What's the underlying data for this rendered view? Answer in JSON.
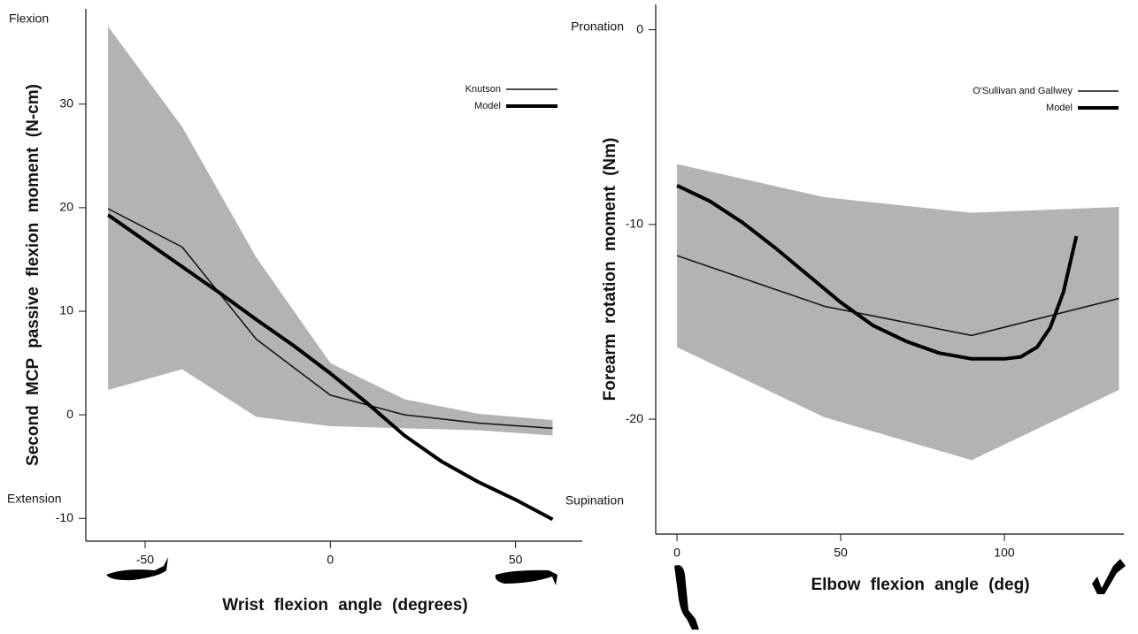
{
  "chart_data": [
    {
      "type": "line",
      "x_label": "Wrist flexion angle (degrees)",
      "y_label": "Second MCP passive flexion moment (N-cm)",
      "annotations": [
        "Flexion",
        "Extension"
      ],
      "xlim": [
        -66,
        68
      ],
      "xticks": [
        -50,
        0,
        50
      ],
      "ylim": [
        -12.2,
        39.2
      ],
      "yticks": [
        -10,
        0,
        10,
        20,
        30
      ],
      "legend": "upper right",
      "band": {
        "color": "#b3b3b3",
        "x": [
          -60,
          -40,
          -20,
          0,
          20,
          40,
          60
        ],
        "upper": [
          37.5,
          27.8,
          15.2,
          5.0,
          1.5,
          0.1,
          -0.5
        ],
        "lower": [
          2.4,
          4.4,
          -0.2,
          -1.1,
          -1.3,
          -1.5,
          -2.0
        ]
      },
      "series": [
        {
          "name": "Knutson",
          "color": "#111111",
          "width": 1.5,
          "x": [
            -60,
            -40,
            -20,
            0,
            20,
            40,
            60
          ],
          "values": [
            19.9,
            16.2,
            7.3,
            1.9,
            0,
            -0.8,
            -1.3
          ]
        },
        {
          "name": "Model",
          "color": "#000000",
          "width": 4,
          "x": [
            -60,
            -50,
            -40,
            -30,
            -20,
            -10,
            0,
            10,
            20,
            30,
            40,
            50,
            60
          ],
          "values": [
            19.3,
            16.8,
            14.3,
            11.8,
            9.2,
            6.7,
            4.0,
            1.1,
            -2.0,
            -4.5,
            -6.5,
            -8.2,
            -10.1
          ]
        }
      ]
    },
    {
      "type": "line",
      "x_label": "Elbow flexion angle (deg)",
      "y_label": "Forearm rotation moment (Nm)",
      "annotations": [
        "Pronation",
        "Supination"
      ],
      "xlim": [
        -6.5,
        136.5
      ],
      "xticks": [
        0,
        50,
        100
      ],
      "ylim": [
        -25.9,
        1.3
      ],
      "yticks": [
        -20,
        -10,
        0
      ],
      "legend": "upper right",
      "band": {
        "color": "#b3b3b3",
        "x": [
          0,
          45,
          90,
          135
        ],
        "upper": [
          -6.9,
          -8.6,
          -9.4,
          -9.1
        ],
        "lower": [
          -16.3,
          -19.9,
          -22.1,
          -18.5
        ]
      },
      "series": [
        {
          "name": "O'Sullivan and Gallwey",
          "color": "#111111",
          "width": 1.5,
          "x": [
            0,
            45,
            90,
            135
          ],
          "values": [
            -11.6,
            -14.2,
            -15.7,
            -13.8
          ]
        },
        {
          "name": "Model",
          "color": "#000000",
          "width": 4,
          "x": [
            0,
            10,
            20,
            30,
            40,
            50,
            60,
            70,
            80,
            90,
            100,
            105,
            110,
            114,
            118,
            122
          ],
          "values": [
            -8.0,
            -8.8,
            -9.9,
            -11.2,
            -12.6,
            -14.0,
            -15.2,
            -16.0,
            -16.6,
            -16.9,
            -16.9,
            -16.8,
            -16.3,
            -15.3,
            -13.5,
            -10.6
          ]
        }
      ]
    }
  ]
}
